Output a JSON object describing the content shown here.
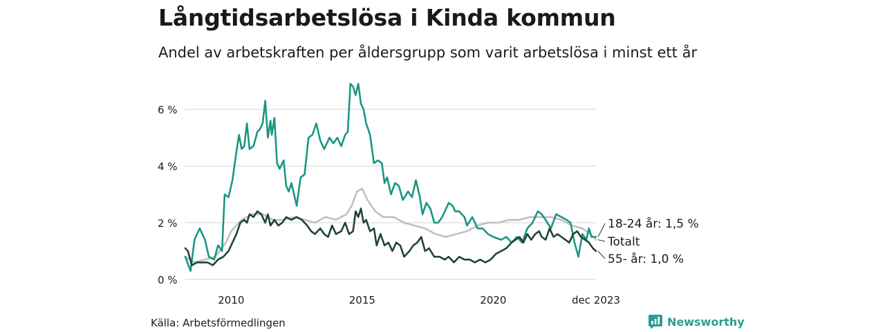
{
  "header": {
    "title": "Långtidsarbetslösa i Kinda kommun",
    "subtitle": "Andel av arbetskraften per åldersgrupp som varit arbetslösa i minst ett år"
  },
  "footer": {
    "source": "Källa: Arbetsförmedlingen",
    "brand": "Newsworthy"
  },
  "colors": {
    "youth": "#1b9683",
    "total": "#c2bdc9",
    "senior": "#1f4438",
    "grid": "#dcdcdc",
    "brand": "#2a9d8f"
  },
  "chart_data": {
    "type": "line",
    "title": "Långtidsarbetslösa i Kinda kommun",
    "xlabel": "",
    "ylabel": "",
    "xlim": [
      2008.25,
      2023.92
    ],
    "ylim": [
      0,
      7
    ],
    "y_ticks": [
      {
        "value": 0,
        "label": "0 %"
      },
      {
        "value": 2,
        "label": "2 %"
      },
      {
        "value": 4,
        "label": "4 %"
      },
      {
        "value": 6,
        "label": "6 %"
      }
    ],
    "x_ticks": [
      {
        "value": 2010,
        "label": "2010"
      },
      {
        "value": 2015,
        "label": "2015"
      },
      {
        "value": 2020,
        "label": "2020"
      },
      {
        "value": 2023.92,
        "label": "dec 2023"
      }
    ],
    "series": [
      {
        "name": "Totalt",
        "label": "Totalt",
        "color": "#c2bdc9",
        "points": [
          [
            2008.25,
            0.8
          ],
          [
            2008.6,
            0.6
          ],
          [
            2009.0,
            0.7
          ],
          [
            2009.4,
            0.8
          ],
          [
            2009.8,
            1.3
          ],
          [
            2010.0,
            1.7
          ],
          [
            2010.4,
            2.1
          ],
          [
            2010.8,
            2.3
          ],
          [
            2011.2,
            2.3
          ],
          [
            2011.6,
            2.1
          ],
          [
            2012.0,
            2.1
          ],
          [
            2012.4,
            2.2
          ],
          [
            2012.8,
            2.1
          ],
          [
            2013.2,
            2.0
          ],
          [
            2013.6,
            2.2
          ],
          [
            2014.0,
            2.1
          ],
          [
            2014.4,
            2.3
          ],
          [
            2014.6,
            2.6
          ],
          [
            2014.8,
            3.1
          ],
          [
            2015.0,
            3.2
          ],
          [
            2015.2,
            2.8
          ],
          [
            2015.5,
            2.4
          ],
          [
            2015.8,
            2.2
          ],
          [
            2016.2,
            2.2
          ],
          [
            2016.6,
            2.0
          ],
          [
            2017.0,
            1.9
          ],
          [
            2017.4,
            1.8
          ],
          [
            2017.8,
            1.6
          ],
          [
            2018.2,
            1.5
          ],
          [
            2018.6,
            1.6
          ],
          [
            2019.0,
            1.7
          ],
          [
            2019.4,
            1.9
          ],
          [
            2019.8,
            2.0
          ],
          [
            2020.2,
            2.0
          ],
          [
            2020.6,
            2.1
          ],
          [
            2021.0,
            2.1
          ],
          [
            2021.4,
            2.2
          ],
          [
            2021.8,
            2.2
          ],
          [
            2022.2,
            2.2
          ],
          [
            2022.6,
            2.1
          ],
          [
            2023.0,
            1.9
          ],
          [
            2023.4,
            1.8
          ],
          [
            2023.7,
            1.6
          ],
          [
            2023.92,
            1.4
          ]
        ]
      },
      {
        "name": "18-24 år",
        "label": "18-24 år: 1,5 %",
        "color": "#1b9683",
        "points": [
          [
            2008.25,
            0.8
          ],
          [
            2008.45,
            0.3
          ],
          [
            2008.6,
            1.4
          ],
          [
            2008.8,
            1.8
          ],
          [
            2009.0,
            1.4
          ],
          [
            2009.15,
            0.8
          ],
          [
            2009.35,
            0.7
          ],
          [
            2009.5,
            1.2
          ],
          [
            2009.65,
            1.0
          ],
          [
            2009.75,
            3.0
          ],
          [
            2009.9,
            2.9
          ],
          [
            2010.05,
            3.5
          ],
          [
            2010.2,
            4.5
          ],
          [
            2010.3,
            5.1
          ],
          [
            2010.4,
            4.6
          ],
          [
            2010.5,
            4.7
          ],
          [
            2010.6,
            5.5
          ],
          [
            2010.7,
            4.6
          ],
          [
            2010.85,
            4.7
          ],
          [
            2011.0,
            5.2
          ],
          [
            2011.1,
            5.3
          ],
          [
            2011.2,
            5.5
          ],
          [
            2011.3,
            6.3
          ],
          [
            2011.4,
            5.0
          ],
          [
            2011.5,
            5.6
          ],
          [
            2011.55,
            5.1
          ],
          [
            2011.65,
            5.7
          ],
          [
            2011.75,
            4.1
          ],
          [
            2011.85,
            3.9
          ],
          [
            2012.0,
            4.2
          ],
          [
            2012.1,
            3.3
          ],
          [
            2012.2,
            3.1
          ],
          [
            2012.3,
            3.4
          ],
          [
            2012.5,
            2.6
          ],
          [
            2012.65,
            3.6
          ],
          [
            2012.8,
            3.7
          ],
          [
            2012.95,
            5.0
          ],
          [
            2013.1,
            5.1
          ],
          [
            2013.25,
            5.5
          ],
          [
            2013.4,
            4.9
          ],
          [
            2013.55,
            4.6
          ],
          [
            2013.75,
            5.0
          ],
          [
            2013.9,
            4.8
          ],
          [
            2014.05,
            5.0
          ],
          [
            2014.2,
            4.7
          ],
          [
            2014.35,
            5.1
          ],
          [
            2014.45,
            5.2
          ],
          [
            2014.55,
            6.9
          ],
          [
            2014.65,
            6.8
          ],
          [
            2014.75,
            6.5
          ],
          [
            2014.85,
            6.9
          ],
          [
            2014.95,
            6.2
          ],
          [
            2015.05,
            6.0
          ],
          [
            2015.15,
            5.5
          ],
          [
            2015.3,
            5.1
          ],
          [
            2015.45,
            4.1
          ],
          [
            2015.6,
            4.2
          ],
          [
            2015.75,
            4.1
          ],
          [
            2015.85,
            3.4
          ],
          [
            2015.95,
            3.6
          ],
          [
            2016.1,
            3.0
          ],
          [
            2016.25,
            3.4
          ],
          [
            2016.4,
            3.3
          ],
          [
            2016.55,
            2.8
          ],
          [
            2016.75,
            3.1
          ],
          [
            2016.9,
            2.9
          ],
          [
            2017.05,
            3.5
          ],
          [
            2017.2,
            2.9
          ],
          [
            2017.3,
            2.3
          ],
          [
            2017.45,
            2.7
          ],
          [
            2017.6,
            2.5
          ],
          [
            2017.75,
            2.0
          ],
          [
            2017.9,
            2.0
          ],
          [
            2018.05,
            2.2
          ],
          [
            2018.2,
            2.5
          ],
          [
            2018.3,
            2.7
          ],
          [
            2018.45,
            2.6
          ],
          [
            2018.55,
            2.4
          ],
          [
            2018.7,
            2.4
          ],
          [
            2018.9,
            2.2
          ],
          [
            2019.0,
            1.9
          ],
          [
            2019.2,
            2.2
          ],
          [
            2019.4,
            1.8
          ],
          [
            2019.6,
            1.8
          ],
          [
            2019.8,
            1.6
          ],
          [
            2020.0,
            1.5
          ],
          [
            2020.3,
            1.4
          ],
          [
            2020.5,
            1.5
          ],
          [
            2020.7,
            1.3
          ],
          [
            2020.9,
            1.5
          ],
          [
            2021.1,
            1.3
          ],
          [
            2021.3,
            1.8
          ],
          [
            2021.5,
            2.0
          ],
          [
            2021.7,
            2.4
          ],
          [
            2021.85,
            2.3
          ],
          [
            2022.0,
            2.1
          ],
          [
            2022.2,
            1.8
          ],
          [
            2022.4,
            2.3
          ],
          [
            2022.6,
            2.2
          ],
          [
            2022.8,
            2.1
          ],
          [
            2022.95,
            2.0
          ],
          [
            2023.1,
            1.3
          ],
          [
            2023.25,
            0.8
          ],
          [
            2023.4,
            1.6
          ],
          [
            2023.55,
            1.4
          ],
          [
            2023.65,
            1.8
          ],
          [
            2023.75,
            1.5
          ],
          [
            2023.92,
            1.5
          ]
        ]
      },
      {
        "name": "55- år",
        "label": "55- år: 1,0 %",
        "color": "#1f4438",
        "points": [
          [
            2008.25,
            1.1
          ],
          [
            2008.35,
            1.0
          ],
          [
            2008.5,
            0.5
          ],
          [
            2008.7,
            0.6
          ],
          [
            2008.9,
            0.6
          ],
          [
            2009.1,
            0.6
          ],
          [
            2009.3,
            0.5
          ],
          [
            2009.5,
            0.7
          ],
          [
            2009.7,
            0.8
          ],
          [
            2009.9,
            1.0
          ],
          [
            2010.05,
            1.3
          ],
          [
            2010.2,
            1.6
          ],
          [
            2010.35,
            2.0
          ],
          [
            2010.5,
            2.1
          ],
          [
            2010.6,
            2.0
          ],
          [
            2010.7,
            2.3
          ],
          [
            2010.85,
            2.2
          ],
          [
            2011.0,
            2.4
          ],
          [
            2011.15,
            2.3
          ],
          [
            2011.3,
            2.0
          ],
          [
            2011.4,
            2.3
          ],
          [
            2011.5,
            1.9
          ],
          [
            2011.65,
            2.1
          ],
          [
            2011.8,
            1.9
          ],
          [
            2011.95,
            2.0
          ],
          [
            2012.1,
            2.2
          ],
          [
            2012.3,
            2.1
          ],
          [
            2012.5,
            2.2
          ],
          [
            2012.7,
            2.1
          ],
          [
            2012.9,
            1.9
          ],
          [
            2013.05,
            1.7
          ],
          [
            2013.2,
            1.6
          ],
          [
            2013.4,
            1.8
          ],
          [
            2013.55,
            1.6
          ],
          [
            2013.7,
            1.5
          ],
          [
            2013.85,
            1.9
          ],
          [
            2014.0,
            1.6
          ],
          [
            2014.2,
            1.7
          ],
          [
            2014.35,
            2.0
          ],
          [
            2014.5,
            1.6
          ],
          [
            2014.65,
            1.7
          ],
          [
            2014.75,
            2.4
          ],
          [
            2014.85,
            2.2
          ],
          [
            2014.95,
            2.5
          ],
          [
            2015.05,
            2.0
          ],
          [
            2015.15,
            2.1
          ],
          [
            2015.3,
            1.7
          ],
          [
            2015.45,
            1.8
          ],
          [
            2015.55,
            1.2
          ],
          [
            2015.7,
            1.6
          ],
          [
            2015.85,
            1.2
          ],
          [
            2016.0,
            1.3
          ],
          [
            2016.15,
            1.0
          ],
          [
            2016.3,
            1.3
          ],
          [
            2016.45,
            1.2
          ],
          [
            2016.6,
            0.8
          ],
          [
            2016.8,
            1.0
          ],
          [
            2016.95,
            1.2
          ],
          [
            2017.1,
            1.3
          ],
          [
            2017.25,
            1.5
          ],
          [
            2017.4,
            1.0
          ],
          [
            2017.55,
            1.1
          ],
          [
            2017.75,
            0.8
          ],
          [
            2017.95,
            0.8
          ],
          [
            2018.15,
            0.7
          ],
          [
            2018.3,
            0.8
          ],
          [
            2018.5,
            0.6
          ],
          [
            2018.7,
            0.8
          ],
          [
            2018.9,
            0.7
          ],
          [
            2019.1,
            0.7
          ],
          [
            2019.3,
            0.6
          ],
          [
            2019.5,
            0.7
          ],
          [
            2019.7,
            0.6
          ],
          [
            2019.9,
            0.7
          ],
          [
            2020.1,
            0.9
          ],
          [
            2020.3,
            1.0
          ],
          [
            2020.5,
            1.1
          ],
          [
            2020.7,
            1.3
          ],
          [
            2020.85,
            1.4
          ],
          [
            2021.0,
            1.5
          ],
          [
            2021.15,
            1.3
          ],
          [
            2021.3,
            1.6
          ],
          [
            2021.45,
            1.4
          ],
          [
            2021.6,
            1.6
          ],
          [
            2021.75,
            1.7
          ],
          [
            2021.85,
            1.5
          ],
          [
            2022.0,
            1.4
          ],
          [
            2022.15,
            1.8
          ],
          [
            2022.3,
            1.5
          ],
          [
            2022.45,
            1.6
          ],
          [
            2022.6,
            1.5
          ],
          [
            2022.75,
            1.4
          ],
          [
            2022.9,
            1.3
          ],
          [
            2023.05,
            1.6
          ],
          [
            2023.2,
            1.7
          ],
          [
            2023.35,
            1.5
          ],
          [
            2023.5,
            1.4
          ],
          [
            2023.65,
            1.3
          ],
          [
            2023.8,
            1.1
          ],
          [
            2023.92,
            1.0
          ]
        ]
      }
    ]
  }
}
